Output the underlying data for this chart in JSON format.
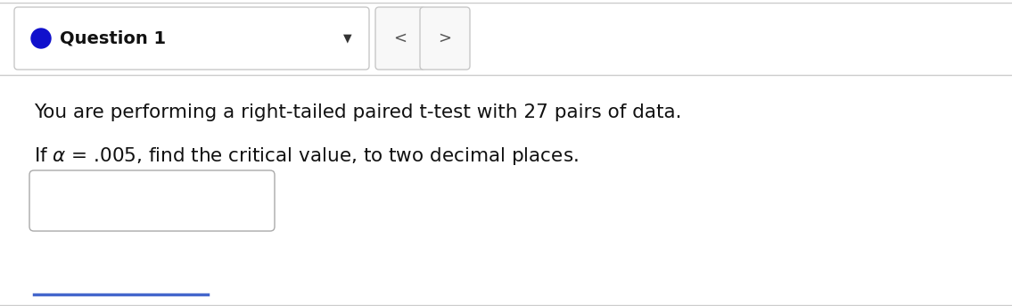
{
  "background_color": "#f0f0f0",
  "content_bg": "#ffffff",
  "header_box_facecolor": "#ffffff",
  "header_box_edgecolor": "#c8c8c8",
  "header_text": "Question 1",
  "header_fontsize": 14,
  "circle_color": "#1010cc",
  "nav_box_facecolor": "#f8f8f8",
  "nav_box_edgecolor": "#c8c8c8",
  "line1": "You are performing a right-tailed paired t-test with 27 pairs of data.",
  "body_fontsize": 15.5,
  "input_box_facecolor": "#ffffff",
  "input_box_edgecolor": "#aaaaaa",
  "separator_color": "#cccccc",
  "bottom_line_color": "#4466cc",
  "fig_width": 11.35,
  "fig_height": 3.43,
  "dpi": 100
}
